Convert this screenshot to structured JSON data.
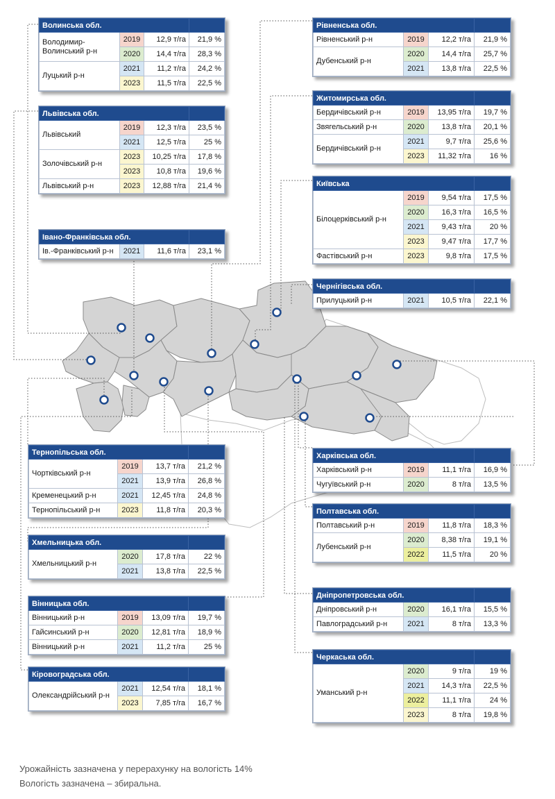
{
  "colors": {
    "header": "#1f4b8e",
    "region_fill": "#d4d4d4",
    "region_empty": "#ffffff",
    "marker": "#1f4b8e",
    "2019": "#f6d5cc",
    "2020": "#dceccf",
    "2021": "#d5e6f4",
    "2022": "#ecef9e",
    "2023": "#fbf6cf"
  },
  "oblasts": [
    {
      "id": "volyn",
      "title": "Волинська обл.",
      "rows": [
        {
          "district": "Володимир-Волинський р-н",
          "year": "2019",
          "yield": "12,9 т/га",
          "moisture": "21,9 %"
        },
        {
          "district": "",
          "year": "2020",
          "yield": "14,4 т/га",
          "moisture": "28,3 %"
        },
        {
          "district": "Луцький р-н",
          "year": "2021",
          "yield": "11,2 т/га",
          "moisture": "24,2 %"
        },
        {
          "district": "",
          "year": "2023",
          "yield": "11,5 т/га",
          "moisture": "22,5 %"
        }
      ]
    },
    {
      "id": "lviv",
      "title": "Львівська обл.",
      "rows": [
        {
          "district": "Львівський",
          "year": "2019",
          "yield": "12,3 т/га",
          "moisture": "23,5 %"
        },
        {
          "district": "",
          "year": "2021",
          "yield": "12,5 т/га",
          "moisture": "25 %"
        },
        {
          "district": "Золочівський р-н",
          "year": "2023",
          "yield": "10,25 т/га",
          "moisture": "17,8 %"
        },
        {
          "district": "",
          "year": "2023",
          "yield": "10,8 т/га",
          "moisture": "19,6 %"
        },
        {
          "district": "Львівський р-н",
          "year": "2023",
          "yield": "12,88 т/га",
          "moisture": "21,4 %"
        }
      ]
    },
    {
      "id": "if",
      "title": "Івано-Франківська обл.",
      "rows": [
        {
          "district": "Ів.-Франківський р-н",
          "year": "2021",
          "yield": "11,6 т/га",
          "moisture": "23,1 %"
        }
      ]
    },
    {
      "id": "tern",
      "title": "Тернопільська обл.",
      "rows": [
        {
          "district": "Чортківський р-н",
          "year": "2019",
          "yield": "13,7 т/га",
          "moisture": "21,2 %"
        },
        {
          "district": "",
          "year": "2021",
          "yield": "13,9 т/га",
          "moisture": "26,8 %"
        },
        {
          "district": "Кременецький р-н",
          "year": "2021",
          "yield": "12,45 т/га",
          "moisture": "24,8 %"
        },
        {
          "district": "Тернопільський р-н",
          "year": "2023",
          "yield": "11,8 т/га",
          "moisture": "20,3 %"
        }
      ]
    },
    {
      "id": "khmel",
      "title": "Хмельницька обл.",
      "rows": [
        {
          "district": "Хмельницький р-н",
          "year": "2020",
          "yield": "17,8 т/га",
          "moisture": "22 %"
        },
        {
          "district": "",
          "year": "2021",
          "yield": "13,8 т/га",
          "moisture": "22,5 %"
        }
      ]
    },
    {
      "id": "vinn",
      "title": "Вінницька обл.",
      "rows": [
        {
          "district": "Вінницький р-н",
          "year": "2019",
          "yield": "13,09 т/га",
          "moisture": "19,7 %"
        },
        {
          "district": "Гайсинський р-н",
          "year": "2020",
          "yield": "12,81 т/га",
          "moisture": "18,9 %"
        },
        {
          "district": "Вінницький р-н",
          "year": "2021",
          "yield": "11,2 т/га",
          "moisture": "25 %"
        }
      ]
    },
    {
      "id": "kirov",
      "title": "Кіровоградська обл.",
      "rows": [
        {
          "district": "Олександрійський р-н",
          "year": "2021",
          "yield": "12,54 т/га",
          "moisture": "18,1 %"
        },
        {
          "district": "",
          "year": "2023",
          "yield": "7,85 т/га",
          "moisture": "16,7 %"
        }
      ]
    },
    {
      "id": "rivne",
      "title": "Рівненська обл.",
      "rows": [
        {
          "district": "Рівненський р-н",
          "year": "2019",
          "yield": "12,2 т/га",
          "moisture": "21,9 %"
        },
        {
          "district": "Дубенський р-н",
          "year": "2020",
          "yield": "14,4 т/га",
          "moisture": "25,7 %"
        },
        {
          "district": "",
          "year": "2021",
          "yield": "13,8 т/га",
          "moisture": "22,5 %"
        }
      ]
    },
    {
      "id": "zhyt",
      "title": "Житомирська обл.",
      "rows": [
        {
          "district": "Бердичівський р-н",
          "year": "2019",
          "yield": "13,95 т/га",
          "moisture": "19,7 %"
        },
        {
          "district": "Звягельський р-н",
          "year": "2020",
          "yield": "13,8 т/га",
          "moisture": "20,1 %"
        },
        {
          "district": "Бердичівський р-н",
          "year": "2021",
          "yield": "9,7 т/га",
          "moisture": "25,6 %"
        },
        {
          "district": "",
          "year": "2023",
          "yield": "11,32 т/га",
          "moisture": "16 %"
        }
      ]
    },
    {
      "id": "kyiv",
      "title": "Київська",
      "rows": [
        {
          "district": "Білоцерківський р-н",
          "year": "2019",
          "yield": "9,54 т/га",
          "moisture": "17,5 %"
        },
        {
          "district": "",
          "year": "2020",
          "yield": "16,3 т/га",
          "moisture": "16,5 %"
        },
        {
          "district": "",
          "year": "2021",
          "yield": "9,43 т/га",
          "moisture": "20 %"
        },
        {
          "district": "",
          "year": "2023",
          "yield": "9,47 т/га",
          "moisture": "17,7 %"
        },
        {
          "district": "Фастівський р-н",
          "year": "2023",
          "yield": "9,8 т/га",
          "moisture": "17,5 %"
        }
      ]
    },
    {
      "id": "cher",
      "title": "Чернігівська обл.",
      "rows": [
        {
          "district": "Прилуцький р-н",
          "year": "2021",
          "yield": "10,5 т/га",
          "moisture": "22,1 %"
        }
      ]
    },
    {
      "id": "khar",
      "title": "Харківська обл.",
      "rows": [
        {
          "district": "Харківський р-н",
          "year": "2019",
          "yield": "11,1 т/га",
          "moisture": "16,9 %"
        },
        {
          "district": "Чугуївський р-н",
          "year": "2020",
          "yield": "8 т/га",
          "moisture": "13,5 %"
        }
      ]
    },
    {
      "id": "polt",
      "title": "Полтавська обл.",
      "rows": [
        {
          "district": "Полтавський р-н",
          "year": "2019",
          "yield": "11,8 т/га",
          "moisture": "18,3 %"
        },
        {
          "district": "Лубенський р-н",
          "year": "2020",
          "yield": "8,38 т/га",
          "moisture": "19,1 %"
        },
        {
          "district": "",
          "year": "2022",
          "yield": "11,5 т/га",
          "moisture": "20 %"
        }
      ]
    },
    {
      "id": "dnip",
      "title": "Дніпропетровська обл.",
      "rows": [
        {
          "district": "Дніпровський р-н",
          "year": "2020",
          "yield": "16,1 т/га",
          "moisture": "15,5 %"
        },
        {
          "district": "Павлоградський р-н",
          "year": "2021",
          "yield": "8 т/га",
          "moisture": "13,3 %"
        }
      ]
    },
    {
      "id": "cherk",
      "title": "Черкаська обл.",
      "rows": [
        {
          "district": "Уманський р-н",
          "year": "2020",
          "yield": "9 т/га",
          "moisture": "19 %"
        },
        {
          "district": "",
          "year": "2021",
          "yield": "14,3 т/га",
          "moisture": "22,5 %"
        },
        {
          "district": "",
          "year": "2022",
          "yield": "11,1 т/га",
          "moisture": "24 %"
        },
        {
          "district": "",
          "year": "2023",
          "yield": "8 т/га",
          "moisture": "19,8 %"
        }
      ]
    }
  ],
  "notes": {
    "line1": "Урожайність зазначена у перерахунку на вологість 14%",
    "line2": "Вологість зазначена – збиральна."
  }
}
